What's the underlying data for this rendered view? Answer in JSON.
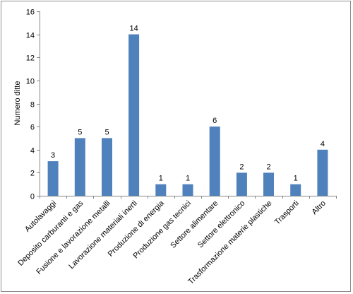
{
  "chart_data": {
    "type": "bar",
    "title": "",
    "xlabel": "",
    "ylabel": "Numero ditte",
    "ylim": [
      0,
      16
    ],
    "yticks": [
      0,
      2,
      4,
      6,
      8,
      10,
      12,
      14,
      16
    ],
    "grid": false,
    "legend": "none",
    "bar_color": "#4f81bd",
    "categories": [
      "Autolavaggi",
      "Deposito carburanti e gas",
      "Fusione e lavorazione metalli",
      "Lavorazione materiali inerti",
      "Produzione di energia",
      "Produzione gas tecnici",
      "Settore alimentare",
      "Settore elettronico",
      "Trasformazione materie plastiche",
      "Trasporti",
      "Altro"
    ],
    "values": [
      3,
      5,
      5,
      14,
      1,
      1,
      6,
      2,
      2,
      1,
      4
    ],
    "data_labels": [
      "3",
      "5",
      "5",
      "14",
      "1",
      "1",
      "6",
      "2",
      "2",
      "1",
      "4"
    ]
  }
}
